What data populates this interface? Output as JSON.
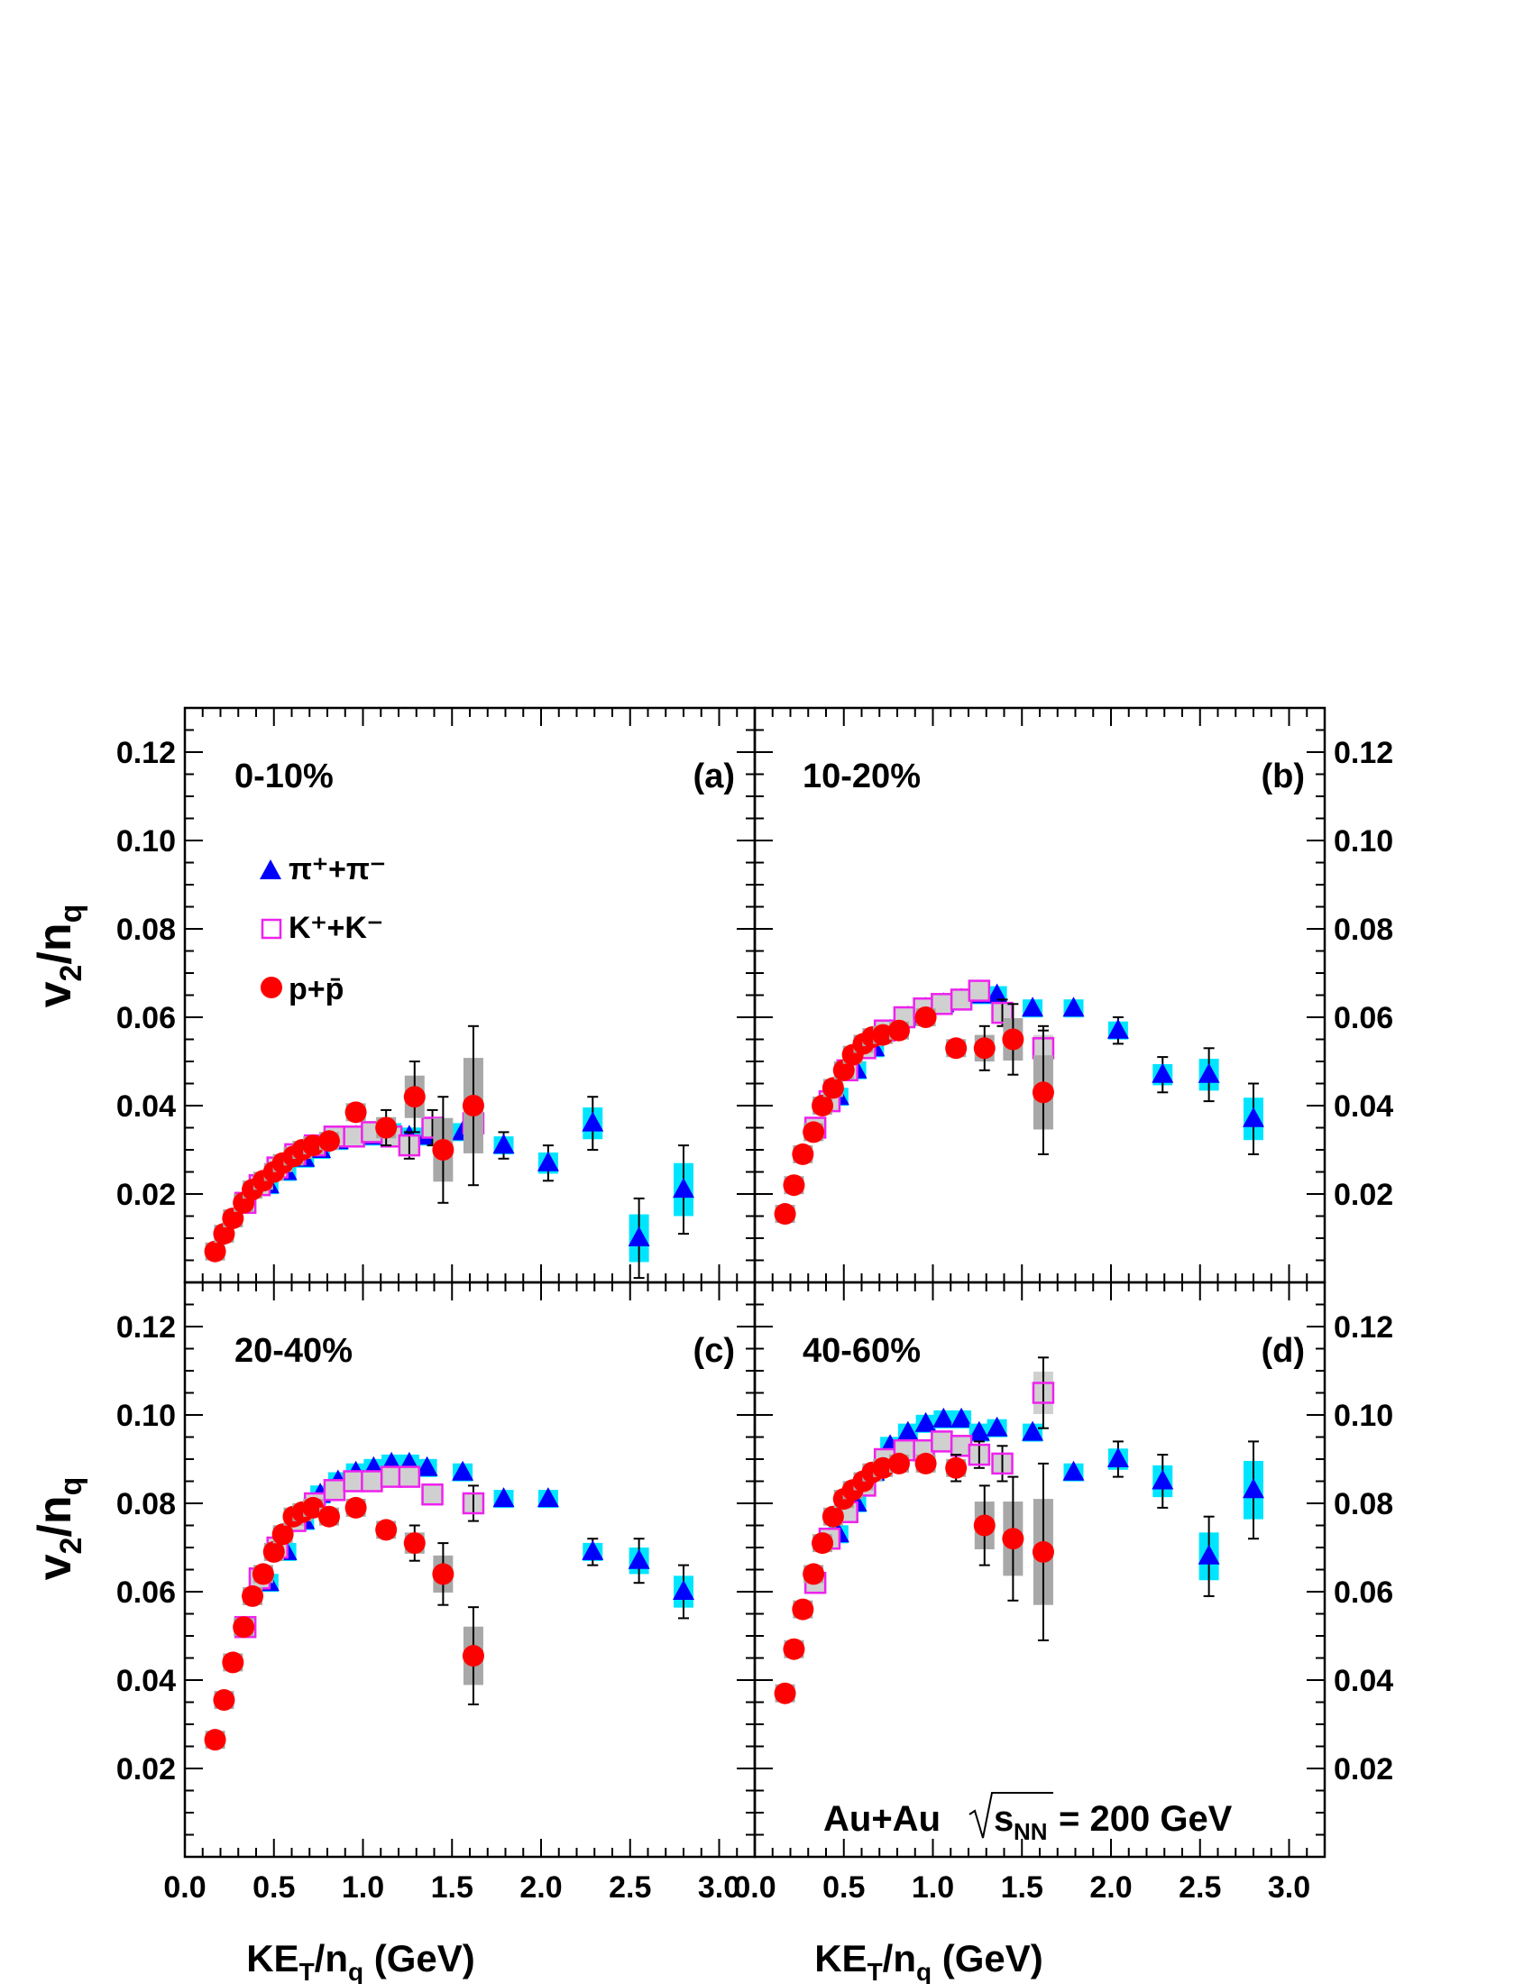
{
  "collision_label": "Au+Au",
  "energy_label": "s",
  "energy_sub": "NN",
  "energy_value": "= 200 GeV",
  "xlabel": {
    "main": "KE",
    "sub1": "T",
    "mid": "/n",
    "sub2": "q",
    "tail": " (GeV)"
  },
  "ylabel": {
    "main": "v",
    "sub1": "2",
    "mid": "/n",
    "sub2": "q"
  },
  "x_tick_labels": [
    "0.0",
    "0.5",
    "1.0",
    "1.5",
    "2.0",
    "2.5",
    "3.0"
  ],
  "y_tick_labels": [
    "0.02",
    "0.04",
    "0.06",
    "0.08",
    "0.10",
    "0.12"
  ],
  "legend": [
    {
      "name": "π⁺+π⁻",
      "marker": "triangle",
      "color": "#0000ff"
    },
    {
      "name": "K⁺+K⁻",
      "marker": "open-square",
      "color": "#ee22ee"
    },
    {
      "name": "p+p̄",
      "marker": "circle",
      "color": "#ff0000"
    }
  ],
  "colors": {
    "pion_sys": "#00e5ff",
    "kaon_sys": "#d0d0d0",
    "proton_sys": "#a8a8a8"
  },
  "chart_data": [
    {
      "type": "scatter",
      "centrality": "0-10%",
      "panel": "(a)",
      "xlim": [
        0,
        3.2
      ],
      "ylim": [
        0,
        0.13
      ],
      "series": [
        {
          "name": "π⁺+π⁻",
          "points": [
            [
              0.47,
              0.022,
              0.001
            ],
            [
              0.57,
              0.025,
              0.001
            ],
            [
              0.67,
              0.028,
              0.001
            ],
            [
              0.76,
              0.03,
              0.001
            ],
            [
              0.86,
              0.032,
              0.001
            ],
            [
              0.96,
              0.033,
              0.001
            ],
            [
              1.06,
              0.033,
              0.001
            ],
            [
              1.16,
              0.034,
              0.002
            ],
            [
              1.26,
              0.033,
              0.002
            ],
            [
              1.36,
              0.033,
              0.002
            ],
            [
              1.56,
              0.034,
              0.002
            ],
            [
              1.79,
              0.031,
              0.003
            ],
            [
              2.04,
              0.027,
              0.004
            ],
            [
              2.29,
              0.036,
              0.006
            ],
            [
              2.55,
              0.01,
              0.009
            ],
            [
              2.8,
              0.021,
              0.01
            ]
          ]
        },
        {
          "name": "K⁺+K⁻",
          "points": [
            [
              0.34,
              0.018,
              0.001
            ],
            [
              0.42,
              0.022,
              0.001
            ],
            [
              0.52,
              0.026,
              0.001
            ],
            [
              0.62,
              0.029,
              0.001
            ],
            [
              0.73,
              0.031,
              0.001
            ],
            [
              0.84,
              0.033,
              0.001
            ],
            [
              0.95,
              0.033,
              0.001
            ],
            [
              1.05,
              0.034,
              0.002
            ],
            [
              1.16,
              0.033,
              0.002
            ],
            [
              1.26,
              0.031,
              0.003
            ],
            [
              1.39,
              0.035,
              0.004
            ],
            [
              1.62,
              0.036,
              0.006
            ]
          ]
        },
        {
          "name": "p+p̄",
          "points": [
            [
              0.17,
              0.007,
              0.0005
            ],
            [
              0.22,
              0.011,
              0.0005
            ],
            [
              0.27,
              0.0145,
              0.0005
            ],
            [
              0.33,
              0.018,
              0.0005
            ],
            [
              0.38,
              0.021,
              0.0005
            ],
            [
              0.44,
              0.023,
              0.0005
            ],
            [
              0.5,
              0.025,
              0.0005
            ],
            [
              0.55,
              0.027,
              0.0005
            ],
            [
              0.61,
              0.0285,
              0.0005
            ],
            [
              0.66,
              0.03,
              0.0005
            ],
            [
              0.72,
              0.031,
              0.0005
            ],
            [
              0.81,
              0.032,
              0.001
            ],
            [
              0.96,
              0.0385,
              0.002
            ],
            [
              1.13,
              0.035,
              0.004
            ],
            [
              1.29,
              0.042,
              0.008
            ],
            [
              1.45,
              0.03,
              0.012
            ],
            [
              1.62,
              0.04,
              0.018
            ]
          ]
        }
      ]
    },
    {
      "type": "scatter",
      "centrality": "10-20%",
      "panel": "(b)",
      "xlim": [
        0,
        3.2
      ],
      "ylim": [
        0,
        0.13
      ],
      "series": [
        {
          "name": "π⁺+π⁻",
          "points": [
            [
              0.47,
              0.042,
              0.001
            ],
            [
              0.57,
              0.048,
              0.001
            ],
            [
              0.67,
              0.053,
              0.001
            ],
            [
              0.76,
              0.057,
              0.001
            ],
            [
              0.86,
              0.06,
              0.001
            ],
            [
              0.96,
              0.062,
              0.001
            ],
            [
              1.06,
              0.063,
              0.001
            ],
            [
              1.16,
              0.064,
              0.001
            ],
            [
              1.26,
              0.065,
              0.002
            ],
            [
              1.36,
              0.065,
              0.002
            ],
            [
              1.56,
              0.062,
              0.002
            ],
            [
              1.79,
              0.062,
              0.002
            ],
            [
              2.04,
              0.057,
              0.003
            ],
            [
              2.29,
              0.047,
              0.004
            ],
            [
              2.55,
              0.047,
              0.006
            ],
            [
              2.8,
              0.037,
              0.008
            ]
          ]
        },
        {
          "name": "K⁺+K⁻",
          "points": [
            [
              0.34,
              0.035,
              0.001
            ],
            [
              0.42,
              0.041,
              0.001
            ],
            [
              0.52,
              0.048,
              0.001
            ],
            [
              0.62,
              0.053,
              0.001
            ],
            [
              0.73,
              0.057,
              0.001
            ],
            [
              0.84,
              0.06,
              0.001
            ],
            [
              0.95,
              0.062,
              0.001
            ],
            [
              1.05,
              0.063,
              0.002
            ],
            [
              1.16,
              0.064,
              0.002
            ],
            [
              1.26,
              0.066,
              0.002
            ],
            [
              1.39,
              0.061,
              0.003
            ],
            [
              1.62,
              0.053,
              0.005
            ]
          ]
        },
        {
          "name": "p+p̄",
          "points": [
            [
              0.17,
              0.0155,
              0.0005
            ],
            [
              0.22,
              0.022,
              0.0005
            ],
            [
              0.27,
              0.029,
              0.0005
            ],
            [
              0.33,
              0.034,
              0.0005
            ],
            [
              0.38,
              0.04,
              0.0005
            ],
            [
              0.44,
              0.044,
              0.0005
            ],
            [
              0.5,
              0.048,
              0.0005
            ],
            [
              0.55,
              0.0515,
              0.0005
            ],
            [
              0.61,
              0.054,
              0.0005
            ],
            [
              0.66,
              0.0555,
              0.0005
            ],
            [
              0.72,
              0.056,
              0.001
            ],
            [
              0.81,
              0.057,
              0.001
            ],
            [
              0.96,
              0.06,
              0.002
            ],
            [
              1.13,
              0.053,
              0.002
            ],
            [
              1.29,
              0.053,
              0.005
            ],
            [
              1.45,
              0.055,
              0.008
            ],
            [
              1.62,
              0.043,
              0.014
            ]
          ]
        }
      ]
    },
    {
      "type": "scatter",
      "centrality": "20-40%",
      "panel": "(c)",
      "xlim": [
        0,
        3.2
      ],
      "ylim": [
        0,
        0.13
      ],
      "series": [
        {
          "name": "π⁺+π⁻",
          "points": [
            [
              0.47,
              0.062,
              0.001
            ],
            [
              0.57,
              0.069,
              0.001
            ],
            [
              0.67,
              0.076,
              0.001
            ],
            [
              0.76,
              0.082,
              0.001
            ],
            [
              0.86,
              0.085,
              0.001
            ],
            [
              0.96,
              0.087,
              0.001
            ],
            [
              1.06,
              0.088,
              0.001
            ],
            [
              1.16,
              0.089,
              0.001
            ],
            [
              1.26,
              0.089,
              0.001
            ],
            [
              1.36,
              0.088,
              0.001
            ],
            [
              1.56,
              0.087,
              0.001
            ],
            [
              1.79,
              0.081,
              0.002
            ],
            [
              2.04,
              0.081,
              0.002
            ],
            [
              2.29,
              0.069,
              0.003
            ],
            [
              2.55,
              0.067,
              0.005
            ],
            [
              2.8,
              0.06,
              0.006
            ]
          ]
        },
        {
          "name": "K⁺+K⁻",
          "points": [
            [
              0.34,
              0.052,
              0.001
            ],
            [
              0.42,
              0.063,
              0.001
            ],
            [
              0.52,
              0.07,
              0.001
            ],
            [
              0.62,
              0.076,
              0.001
            ],
            [
              0.73,
              0.08,
              0.001
            ],
            [
              0.84,
              0.083,
              0.001
            ],
            [
              0.95,
              0.085,
              0.001
            ],
            [
              1.05,
              0.085,
              0.001
            ],
            [
              1.16,
              0.086,
              0.001
            ],
            [
              1.26,
              0.086,
              0.002
            ],
            [
              1.39,
              0.082,
              0.002
            ],
            [
              1.62,
              0.08,
              0.004
            ]
          ]
        },
        {
          "name": "p+p̄",
          "points": [
            [
              0.17,
              0.0265,
              0.0005
            ],
            [
              0.22,
              0.0355,
              0.0005
            ],
            [
              0.27,
              0.044,
              0.0005
            ],
            [
              0.33,
              0.052,
              0.0005
            ],
            [
              0.38,
              0.059,
              0.0005
            ],
            [
              0.44,
              0.064,
              0.0005
            ],
            [
              0.5,
              0.069,
              0.0005
            ],
            [
              0.55,
              0.073,
              0.0005
            ],
            [
              0.61,
              0.077,
              0.0005
            ],
            [
              0.66,
              0.078,
              0.001
            ],
            [
              0.72,
              0.079,
              0.001
            ],
            [
              0.81,
              0.077,
              0.001
            ],
            [
              0.96,
              0.079,
              0.001
            ],
            [
              1.13,
              0.074,
              0.002
            ],
            [
              1.29,
              0.071,
              0.004
            ],
            [
              1.45,
              0.064,
              0.007
            ],
            [
              1.62,
              0.0455,
              0.011
            ]
          ]
        }
      ]
    },
    {
      "type": "scatter",
      "centrality": "40-60%",
      "panel": "(d)",
      "xlim": [
        0,
        3.2
      ],
      "ylim": [
        0,
        0.13
      ],
      "series": [
        {
          "name": "π⁺+π⁻",
          "points": [
            [
              0.47,
              0.073,
              0.001
            ],
            [
              0.57,
              0.08,
              0.001
            ],
            [
              0.67,
              0.087,
              0.001
            ],
            [
              0.76,
              0.093,
              0.001
            ],
            [
              0.86,
              0.096,
              0.001
            ],
            [
              0.96,
              0.098,
              0.001
            ],
            [
              1.06,
              0.099,
              0.001
            ],
            [
              1.16,
              0.099,
              0.002
            ],
            [
              1.26,
              0.096,
              0.002
            ],
            [
              1.36,
              0.097,
              0.002
            ],
            [
              1.56,
              0.096,
              0.002
            ],
            [
              1.79,
              0.087,
              0.002
            ],
            [
              2.04,
              0.09,
              0.004
            ],
            [
              2.29,
              0.085,
              0.006
            ],
            [
              2.55,
              0.068,
              0.009
            ],
            [
              2.8,
              0.083,
              0.011
            ]
          ]
        },
        {
          "name": "K⁺+K⁻",
          "points": [
            [
              0.34,
              0.062,
              0.001
            ],
            [
              0.42,
              0.072,
              0.001
            ],
            [
              0.52,
              0.078,
              0.001
            ],
            [
              0.62,
              0.084,
              0.001
            ],
            [
              0.73,
              0.09,
              0.001
            ],
            [
              0.84,
              0.092,
              0.001
            ],
            [
              0.95,
              0.092,
              0.002
            ],
            [
              1.05,
              0.094,
              0.002
            ],
            [
              1.16,
              0.093,
              0.002
            ],
            [
              1.26,
              0.091,
              0.003
            ],
            [
              1.39,
              0.089,
              0.004
            ],
            [
              1.62,
              0.105,
              0.008
            ]
          ]
        },
        {
          "name": "p+p̄",
          "points": [
            [
              0.17,
              0.037,
              0.0005
            ],
            [
              0.22,
              0.047,
              0.0005
            ],
            [
              0.27,
              0.056,
              0.0005
            ],
            [
              0.33,
              0.064,
              0.0005
            ],
            [
              0.38,
              0.071,
              0.0005
            ],
            [
              0.44,
              0.077,
              0.001
            ],
            [
              0.5,
              0.081,
              0.001
            ],
            [
              0.55,
              0.083,
              0.001
            ],
            [
              0.61,
              0.085,
              0.001
            ],
            [
              0.66,
              0.087,
              0.001
            ],
            [
              0.72,
              0.088,
              0.001
            ],
            [
              0.81,
              0.089,
              0.001
            ],
            [
              0.96,
              0.089,
              0.002
            ],
            [
              1.13,
              0.088,
              0.003
            ],
            [
              1.29,
              0.075,
              0.009
            ],
            [
              1.45,
              0.072,
              0.014
            ],
            [
              1.62,
              0.069,
              0.02
            ]
          ]
        }
      ]
    }
  ]
}
